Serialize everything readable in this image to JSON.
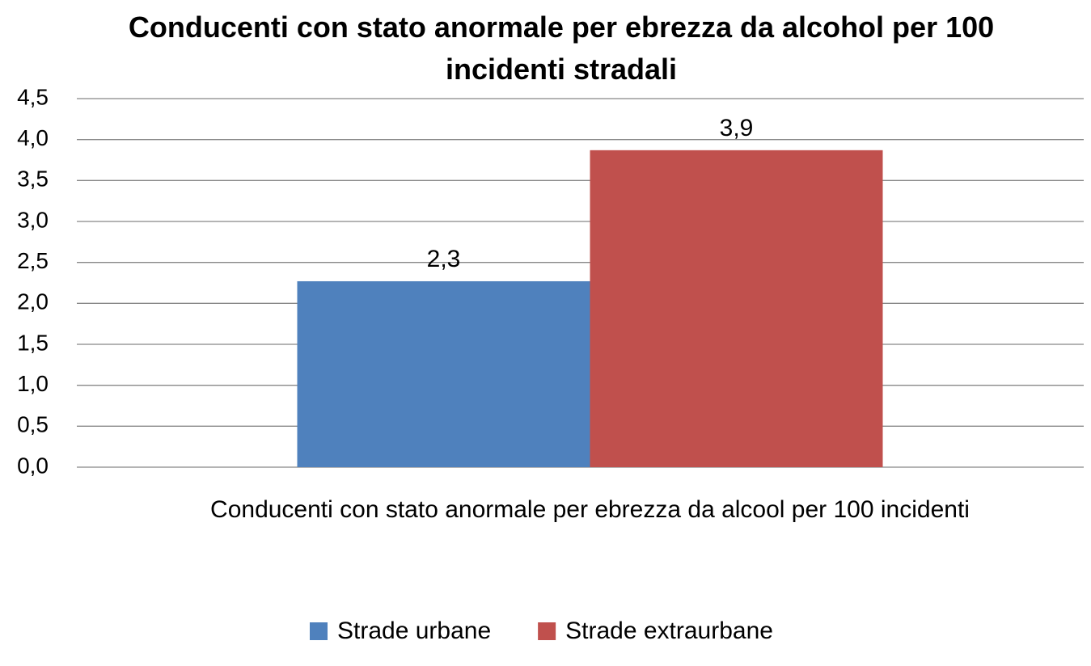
{
  "chart_data": {
    "type": "bar",
    "title": "Conducenti con stato anormale per ebrezza da alcohol per 100 incidenti stradali",
    "categories": [
      "Conducenti con stato anormale per ebrezza da alcool per 100 incidenti"
    ],
    "series": [
      {
        "name": "Strade urbane",
        "color": "#4f81bd",
        "values": [
          2.27
        ],
        "value_labels": [
          "2,3"
        ]
      },
      {
        "name": "Strade extraurbane",
        "color": "#c0504d",
        "values": [
          3.87
        ],
        "value_labels": [
          "3,9"
        ]
      }
    ],
    "ylim": [
      0,
      4.5
    ],
    "yticks": [
      {
        "value": 0,
        "label": "0,0"
      },
      {
        "value": 0.5,
        "label": "0,5"
      },
      {
        "value": 1,
        "label": "1,0"
      },
      {
        "value": 1.5,
        "label": "1,5"
      },
      {
        "value": 2,
        "label": "2,0"
      },
      {
        "value": 2.5,
        "label": "2,5"
      },
      {
        "value": 3,
        "label": "3,0"
      },
      {
        "value": 3.5,
        "label": "3,5"
      },
      {
        "value": 4,
        "label": "4,0"
      },
      {
        "value": 4.5,
        "label": "4,5"
      }
    ],
    "grid": true,
    "legend": "bottom"
  }
}
